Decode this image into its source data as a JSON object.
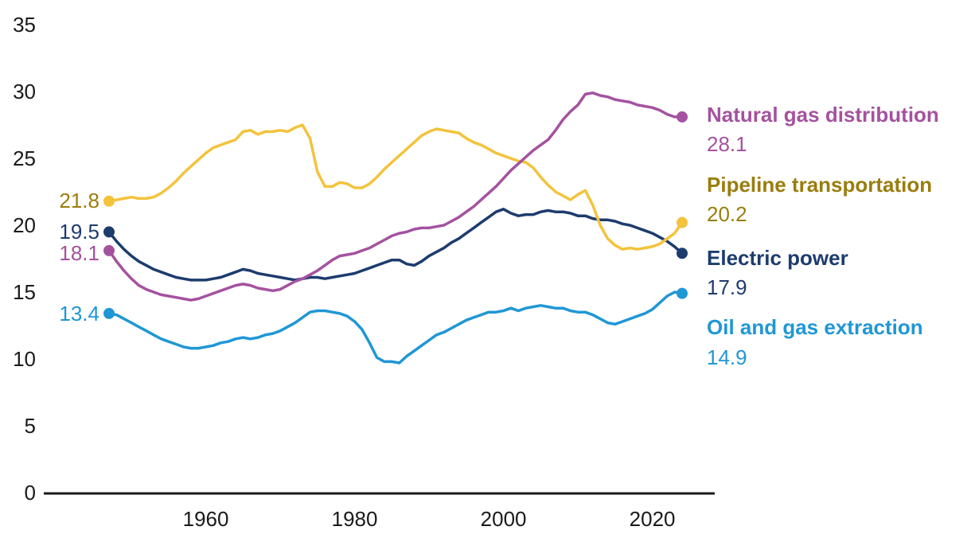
{
  "chart_data": {
    "type": "line",
    "title": "",
    "xlabel": "",
    "ylabel": "",
    "xlim": [
      1947,
      2024
    ],
    "ylim": [
      0,
      35
    ],
    "grid": false,
    "legend_position": "right-annotations",
    "axis_color": "#1a1a1a",
    "x_ticks": [
      "1960",
      "1980",
      "2000",
      "2020"
    ],
    "y_ticks": [
      "35",
      "30",
      "25",
      "20",
      "15",
      "10",
      "5",
      "0"
    ],
    "series": [
      {
        "id": "natural-gas-distribution",
        "name": "Natural gas distribution",
        "color": "#a4529f",
        "label_color": "#a4529f",
        "start_label": "18.1",
        "end_label": "28.1",
        "values": [
          18.1,
          17.3,
          16.6,
          16.0,
          15.5,
          15.2,
          15.0,
          14.8,
          14.7,
          14.6,
          14.5,
          14.4,
          14.5,
          14.7,
          14.9,
          15.1,
          15.3,
          15.5,
          15.6,
          15.5,
          15.3,
          15.2,
          15.1,
          15.2,
          15.5,
          15.8,
          16.0,
          16.3,
          16.6,
          17.0,
          17.4,
          17.7,
          17.8,
          17.9,
          18.1,
          18.3,
          18.6,
          18.9,
          19.2,
          19.4,
          19.5,
          19.7,
          19.8,
          19.8,
          19.9,
          20.0,
          20.3,
          20.6,
          21.0,
          21.4,
          21.9,
          22.4,
          22.9,
          23.5,
          24.1,
          24.6,
          25.1,
          25.6,
          26.0,
          26.4,
          27.1,
          27.9,
          28.5,
          29.0,
          29.8,
          29.9,
          29.7,
          29.6,
          29.4,
          29.3,
          29.2,
          29.0,
          28.9,
          28.8,
          28.6,
          28.3,
          28.1,
          28.1
        ]
      },
      {
        "id": "pipeline-transportation",
        "name": "Pipeline transportation",
        "color": "#f3c33c",
        "label_color": "#9a7d0e",
        "start_label": "21.8",
        "end_label": "20.2",
        "values": [
          21.8,
          21.9,
          22.0,
          22.1,
          22.0,
          22.0,
          22.1,
          22.4,
          22.8,
          23.3,
          23.9,
          24.4,
          24.9,
          25.4,
          25.8,
          26.0,
          26.2,
          26.4,
          27.0,
          27.1,
          26.8,
          27.0,
          27.0,
          27.1,
          27.0,
          27.3,
          27.5,
          26.5,
          24.0,
          22.9,
          22.9,
          23.2,
          23.1,
          22.8,
          22.8,
          23.1,
          23.6,
          24.2,
          24.7,
          25.2,
          25.7,
          26.2,
          26.7,
          27.0,
          27.2,
          27.1,
          27.0,
          26.9,
          26.5,
          26.2,
          26.0,
          25.7,
          25.4,
          25.2,
          25.0,
          24.8,
          24.7,
          24.3,
          23.6,
          23.0,
          22.5,
          22.2,
          21.9,
          22.3,
          22.6,
          21.5,
          20.0,
          19.0,
          18.5,
          18.2,
          18.3,
          18.2,
          18.3,
          18.4,
          18.6,
          19.0,
          19.4,
          20.2
        ]
      },
      {
        "id": "electric-power",
        "name": "Electric power",
        "color": "#1d3c6e",
        "label_color": "#1d3c6e",
        "start_label": "19.5",
        "end_label": "17.9",
        "values": [
          19.5,
          18.8,
          18.2,
          17.7,
          17.3,
          17.0,
          16.7,
          16.5,
          16.3,
          16.1,
          16.0,
          15.9,
          15.9,
          15.9,
          16.0,
          16.1,
          16.3,
          16.5,
          16.7,
          16.6,
          16.4,
          16.3,
          16.2,
          16.1,
          16.0,
          15.9,
          16.0,
          16.1,
          16.1,
          16.0,
          16.1,
          16.2,
          16.3,
          16.4,
          16.6,
          16.8,
          17.0,
          17.2,
          17.4,
          17.4,
          17.1,
          17.0,
          17.3,
          17.7,
          18.0,
          18.3,
          18.7,
          19.0,
          19.4,
          19.8,
          20.2,
          20.6,
          21.0,
          21.2,
          20.9,
          20.7,
          20.8,
          20.8,
          21.0,
          21.1,
          21.0,
          21.0,
          20.9,
          20.7,
          20.7,
          20.5,
          20.4,
          20.4,
          20.3,
          20.1,
          20.0,
          19.8,
          19.6,
          19.4,
          19.1,
          18.8,
          18.4,
          17.9
        ]
      },
      {
        "id": "oil-and-gas-extraction",
        "name": "Oil and gas extraction",
        "color": "#2097d5",
        "label_color": "#2097d5",
        "start_label": "13.4",
        "end_label": "14.9",
        "values": [
          13.4,
          13.3,
          13.0,
          12.7,
          12.4,
          12.1,
          11.8,
          11.5,
          11.3,
          11.1,
          10.9,
          10.8,
          10.8,
          10.9,
          11.0,
          11.2,
          11.3,
          11.5,
          11.6,
          11.5,
          11.6,
          11.8,
          11.9,
          12.1,
          12.4,
          12.7,
          13.1,
          13.5,
          13.6,
          13.6,
          13.5,
          13.4,
          13.2,
          12.8,
          12.2,
          11.2,
          10.1,
          9.8,
          9.8,
          9.7,
          10.2,
          10.6,
          11.0,
          11.4,
          11.8,
          12.0,
          12.3,
          12.6,
          12.9,
          13.1,
          13.3,
          13.5,
          13.5,
          13.6,
          13.8,
          13.6,
          13.8,
          13.9,
          14.0,
          13.9,
          13.8,
          13.8,
          13.6,
          13.5,
          13.5,
          13.3,
          13.0,
          12.7,
          12.6,
          12.8,
          13.0,
          13.2,
          13.4,
          13.7,
          14.2,
          14.7,
          15.0,
          14.9
        ]
      }
    ]
  }
}
